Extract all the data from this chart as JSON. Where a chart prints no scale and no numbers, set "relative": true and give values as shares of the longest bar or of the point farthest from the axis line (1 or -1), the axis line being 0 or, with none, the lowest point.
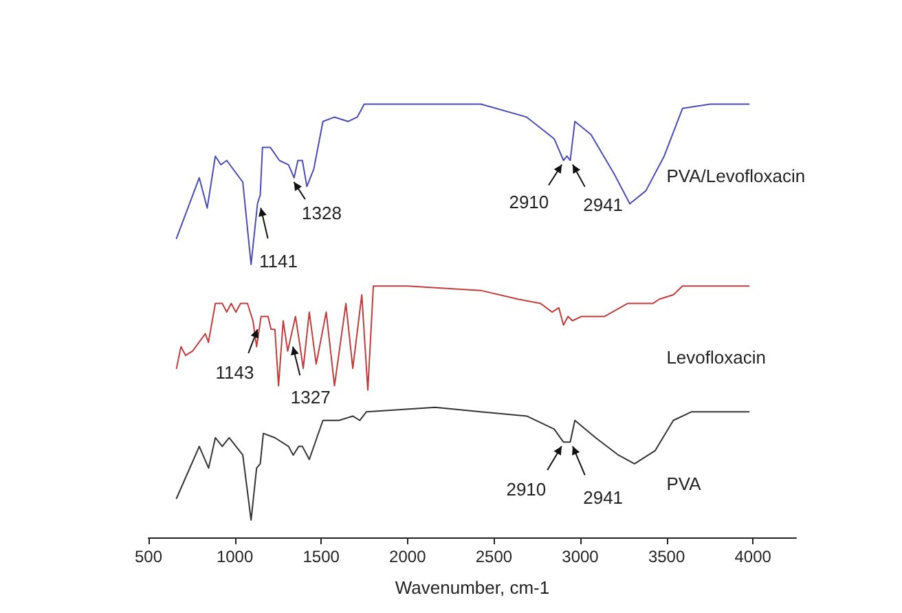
{
  "chart_data": {
    "type": "line",
    "relative": true,
    "xlabel": "Wavenumber, cm-1",
    "xlim": [
      500,
      4250
    ],
    "xticks": [
      500,
      1000,
      1500,
      2000,
      2500,
      3000,
      3500,
      4000
    ],
    "grid": false,
    "legend": false,
    "marker": "none",
    "line_style": "solid",
    "series": [
      {
        "name": "PVA/Levofloxacin",
        "color": "#4b4bb4",
        "x": [
          662,
          794,
          840,
          887,
          919,
          953,
          1046,
          1094,
          1131,
          1147,
          1160,
          1206,
          1258,
          1311,
          1343,
          1365,
          1391,
          1417,
          1457,
          1510,
          1577,
          1656,
          1709,
          1749,
          2000,
          2425,
          2690,
          2849,
          2903,
          2923,
          2942,
          2969,
          3062,
          3195,
          3287,
          3380,
          3486,
          3592,
          3751,
          3977
        ],
        "values": [
          0.69,
          0.83,
          0.76,
          0.88,
          0.86,
          0.87,
          0.82,
          0.63,
          0.77,
          0.79,
          0.9,
          0.9,
          0.87,
          0.86,
          0.83,
          0.87,
          0.87,
          0.81,
          0.85,
          0.96,
          0.97,
          0.96,
          0.97,
          1.0,
          1.0,
          1.0,
          0.97,
          0.92,
          0.87,
          0.88,
          0.87,
          0.96,
          0.93,
          0.84,
          0.77,
          0.8,
          0.88,
          0.99,
          1.0,
          1.0
        ]
      },
      {
        "name": "Levofloxacin",
        "color": "#c23b3b",
        "x": [
          662,
          688,
          715,
          755,
          829,
          847,
          887,
          927,
          953,
          979,
          1006,
          1033,
          1073,
          1105,
          1126,
          1152,
          1192,
          1210,
          1232,
          1253,
          1280,
          1306,
          1351,
          1378,
          1396,
          1431,
          1471,
          1529,
          1577,
          1643,
          1683,
          1735,
          1770,
          1802,
          2001,
          2425,
          2638,
          2770,
          2837,
          2876,
          2903,
          2929,
          2955,
          3008,
          3141,
          3274,
          3420,
          3459,
          3539,
          3592,
          3977
        ],
        "values": [
          0.39,
          0.44,
          0.42,
          0.43,
          0.47,
          0.45,
          0.54,
          0.54,
          0.52,
          0.54,
          0.52,
          0.54,
          0.54,
          0.5,
          0.44,
          0.51,
          0.51,
          0.48,
          0.48,
          0.35,
          0.5,
          0.43,
          0.51,
          0.44,
          0.39,
          0.52,
          0.4,
          0.52,
          0.35,
          0.54,
          0.39,
          0.56,
          0.34,
          0.58,
          0.58,
          0.57,
          0.55,
          0.54,
          0.52,
          0.53,
          0.49,
          0.51,
          0.5,
          0.51,
          0.51,
          0.54,
          0.54,
          0.55,
          0.56,
          0.58,
          0.58
        ]
      },
      {
        "name": "PVA",
        "color": "#333333",
        "x": [
          662,
          794,
          848,
          887,
          927,
          967,
          1046,
          1094,
          1126,
          1147,
          1165,
          1232,
          1311,
          1338,
          1370,
          1391,
          1431,
          1510,
          1603,
          1683,
          1723,
          1762,
          2160,
          2425,
          2690,
          2849,
          2903,
          2929,
          2942,
          2969,
          3089,
          3221,
          3314,
          3433,
          3539,
          3645,
          3977
        ],
        "values": [
          0.09,
          0.21,
          0.16,
          0.23,
          0.21,
          0.23,
          0.19,
          0.04,
          0.16,
          0.17,
          0.24,
          0.23,
          0.21,
          0.19,
          0.21,
          0.21,
          0.18,
          0.27,
          0.27,
          0.28,
          0.27,
          0.29,
          0.3,
          0.29,
          0.28,
          0.25,
          0.22,
          0.22,
          0.22,
          0.27,
          0.23,
          0.19,
          0.17,
          0.2,
          0.27,
          0.29,
          0.29
        ]
      }
    ],
    "annotations": [
      {
        "text": "1141",
        "x": 1141,
        "y": 0.77
      },
      {
        "text": "1328",
        "x": 1328,
        "y": 0.83
      },
      {
        "text": "2910",
        "x": 2910,
        "y": 0.87
      },
      {
        "text": "2941",
        "x": 2941,
        "y": 0.87
      },
      {
        "text": "1143",
        "x": 1143,
        "y": 0.49
      },
      {
        "text": "1327",
        "x": 1327,
        "y": 0.45
      },
      {
        "text": "2910",
        "x": 2910,
        "y": 0.22
      },
      {
        "text": "2941",
        "x": 2941,
        "y": 0.22
      }
    ]
  }
}
